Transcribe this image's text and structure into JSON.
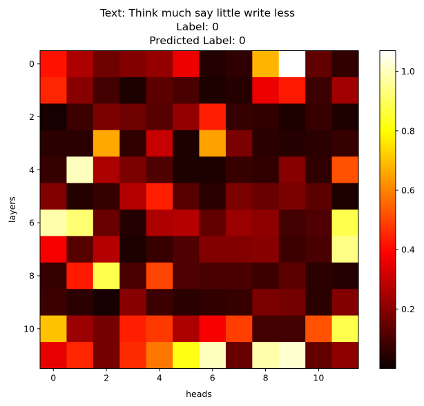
{
  "chart_data": {
    "type": "heatmap",
    "title_lines": [
      "Text: Think much say little write less",
      "Label: 0",
      "Predicted Label: 0"
    ],
    "xlabel": "heads",
    "ylabel": "layers",
    "x_ticks": [
      0,
      2,
      4,
      6,
      8,
      10
    ],
    "y_ticks": [
      0,
      2,
      4,
      6,
      8,
      10
    ],
    "colorbar_ticks": [
      0.2,
      0.4,
      0.6,
      0.8,
      1.0
    ],
    "colorbar_range": [
      0.0,
      1.07
    ],
    "colormap": "hot",
    "values": [
      [
        0.42,
        0.26,
        0.16,
        0.19,
        0.22,
        0.36,
        0.04,
        0.06,
        0.68,
        1.07,
        0.14,
        0.06
      ],
      [
        0.45,
        0.2,
        0.09,
        0.03,
        0.13,
        0.1,
        0.03,
        0.04,
        0.36,
        0.43,
        0.08,
        0.24
      ],
      [
        0.02,
        0.08,
        0.18,
        0.16,
        0.12,
        0.22,
        0.44,
        0.07,
        0.06,
        0.03,
        0.07,
        0.03
      ],
      [
        0.05,
        0.05,
        0.66,
        0.06,
        0.3,
        0.03,
        0.65,
        0.18,
        0.05,
        0.04,
        0.05,
        0.07
      ],
      [
        0.07,
        1.0,
        0.26,
        0.18,
        0.11,
        0.03,
        0.03,
        0.07,
        0.06,
        0.2,
        0.06,
        0.52
      ],
      [
        0.19,
        0.04,
        0.07,
        0.27,
        0.44,
        0.12,
        0.05,
        0.18,
        0.15,
        0.18,
        0.13,
        0.03
      ],
      [
        0.98,
        0.92,
        0.15,
        0.04,
        0.26,
        0.27,
        0.14,
        0.23,
        0.21,
        0.09,
        0.11,
        0.88
      ],
      [
        0.38,
        0.12,
        0.27,
        0.03,
        0.07,
        0.11,
        0.19,
        0.19,
        0.2,
        0.08,
        0.1,
        0.94
      ],
      [
        0.07,
        0.43,
        0.88,
        0.1,
        0.5,
        0.11,
        0.1,
        0.1,
        0.08,
        0.13,
        0.05,
        0.04
      ],
      [
        0.08,
        0.05,
        0.02,
        0.2,
        0.08,
        0.05,
        0.06,
        0.07,
        0.18,
        0.17,
        0.05,
        0.19
      ],
      [
        0.7,
        0.23,
        0.17,
        0.44,
        0.48,
        0.26,
        0.38,
        0.49,
        0.09,
        0.09,
        0.52,
        0.88
      ],
      [
        0.35,
        0.45,
        0.17,
        0.46,
        0.58,
        0.82,
        1.0,
        0.15,
        0.98,
        1.02,
        0.14,
        0.21
      ]
    ]
  }
}
